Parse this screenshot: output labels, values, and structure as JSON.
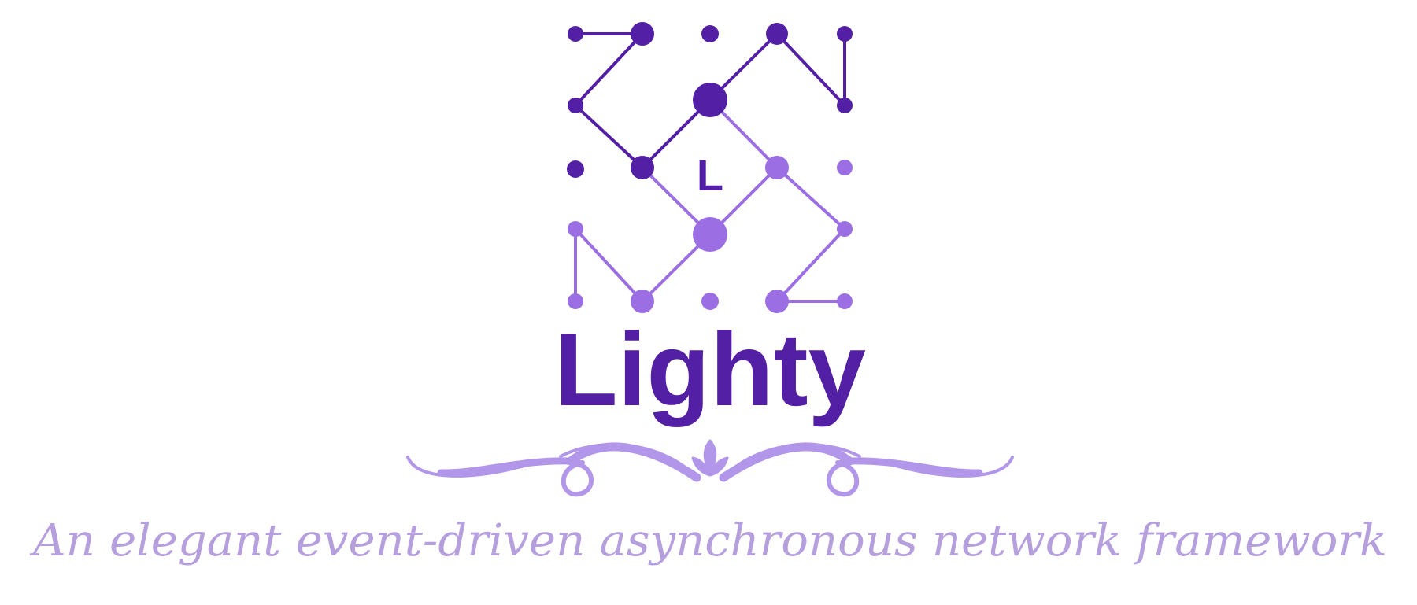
{
  "logo": {
    "letter": "L",
    "name": "Lighty",
    "colors": {
      "dark": "#521fa5",
      "light": "#9b6fe3",
      "ornament": "#b196ea",
      "tagline": "#b59fdd"
    }
  },
  "tagline": "An elegant event-driven asynchronous network framework"
}
